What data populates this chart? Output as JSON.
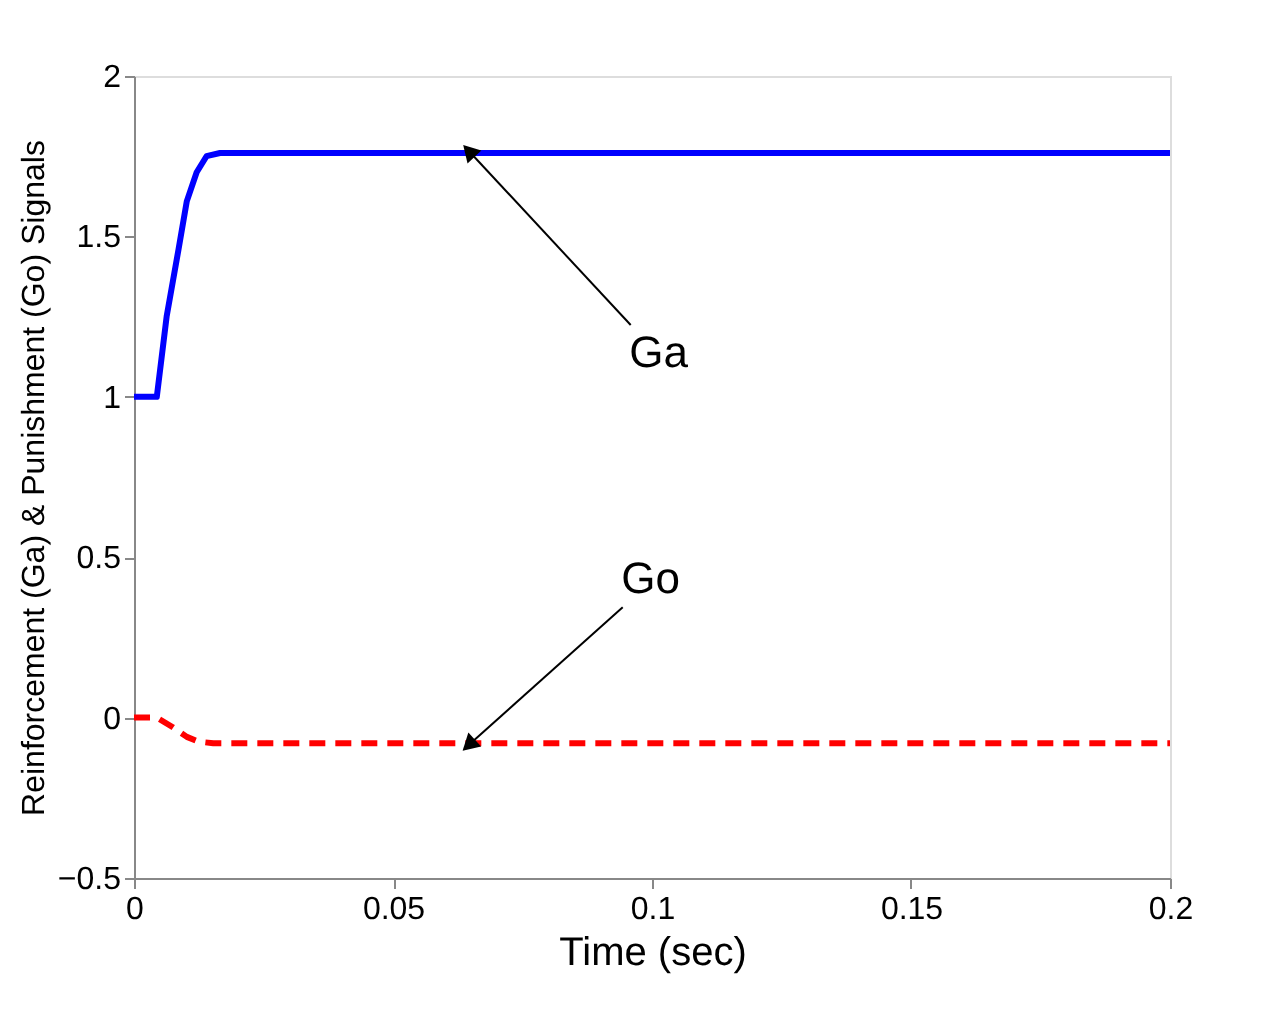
{
  "chart_data": {
    "type": "line",
    "xlabel": "Time (sec)",
    "ylabel": "Reinforcement (Ga) & Punishment (Go) Signals",
    "xlim": [
      0,
      0.2
    ],
    "xticks": [
      0,
      0.05,
      0.1,
      0.15,
      0.2
    ],
    "ylim": [
      -0.5,
      2
    ],
    "yticks": [
      -0.5,
      0,
      0.5,
      1,
      1.5,
      2
    ],
    "grid": false,
    "series": [
      {
        "color": "#0000ff",
        "line_style": "solid",
        "x": [
          0,
          0.0044,
          0.0063,
          0.0086,
          0.0102,
          0.0121,
          0.014,
          0.0166,
          0.2
        ],
        "values": [
          1,
          1,
          1.25,
          1.46,
          1.61,
          1.7,
          1.75,
          1.76,
          1.76
        ]
      },
      {
        "color": "#ff0000",
        "line_style": "dashed",
        "x": [
          0,
          0.0044,
          0.0075,
          0.0102,
          0.0125,
          0.0153,
          0.2
        ],
        "values": [
          0,
          0,
          -0.03,
          -0.06,
          -0.075,
          -0.08,
          -0.08
        ]
      }
    ],
    "annotations": [
      {
        "text": "Ga",
        "x": 0.065,
        "y": 1.76
      },
      {
        "text": "Go",
        "x": 0.065,
        "y": -0.08
      }
    ]
  }
}
